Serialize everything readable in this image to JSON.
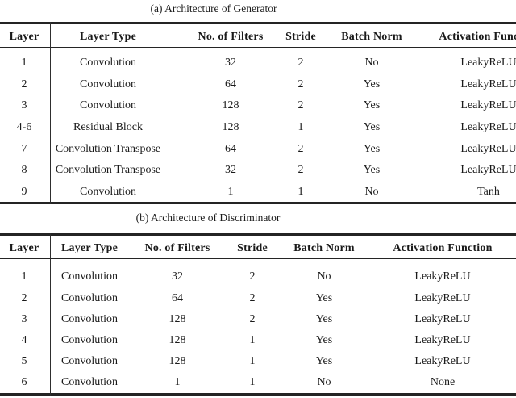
{
  "page": {
    "background": "#ffffff",
    "text_color": "#1a1a1a",
    "rule_color": "#242424"
  },
  "tables": {
    "generator": {
      "caption": "(a) Architecture of Generator",
      "headers": [
        "Layer",
        "Layer Type",
        "No. of Filters",
        "Stride",
        "Batch Norm",
        "Activation Function"
      ],
      "rows": [
        [
          "1",
          "Convolution",
          "32",
          "2",
          "No",
          "LeakyReLU"
        ],
        [
          "2",
          "Convolution",
          "64",
          "2",
          "Yes",
          "LeakyReLU"
        ],
        [
          "3",
          "Convolution",
          "128",
          "2",
          "Yes",
          "LeakyReLU"
        ],
        [
          "4-6",
          "Residual Block",
          "128",
          "1",
          "Yes",
          "LeakyReLU"
        ],
        [
          "7",
          "Convolution Transpose",
          "64",
          "2",
          "Yes",
          "LeakyReLU"
        ],
        [
          "8",
          "Convolution Transpose",
          "32",
          "2",
          "Yes",
          "LeakyReLU"
        ],
        [
          "9",
          "Convolution",
          "1",
          "1",
          "No",
          "Tanh"
        ]
      ]
    },
    "discriminator": {
      "caption": "(b) Architecture of Discriminator",
      "headers": [
        "Layer",
        "Layer Type",
        "No. of Filters",
        "Stride",
        "Batch Norm",
        "Activation Function"
      ],
      "rows": [
        [
          "1",
          "Convolution",
          "32",
          "2",
          "No",
          "LeakyReLU"
        ],
        [
          "2",
          "Convolution",
          "64",
          "2",
          "Yes",
          "LeakyReLU"
        ],
        [
          "3",
          "Convolution",
          "128",
          "2",
          "Yes",
          "LeakyReLU"
        ],
        [
          "4",
          "Convolution",
          "128",
          "1",
          "Yes",
          "LeakyReLU"
        ],
        [
          "5",
          "Convolution",
          "128",
          "1",
          "Yes",
          "LeakyReLU"
        ],
        [
          "6",
          "Convolution",
          "1",
          "1",
          "No",
          "None"
        ]
      ]
    }
  }
}
